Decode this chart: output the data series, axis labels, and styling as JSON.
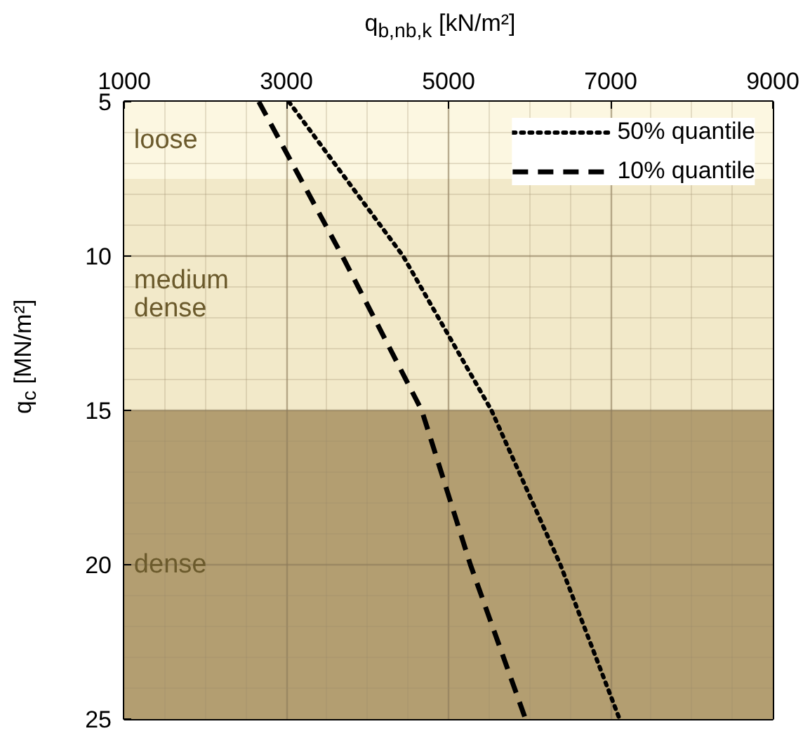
{
  "chart_data": {
    "type": "line",
    "xlabel": "q$_{b,nb,k}$ [kN/m²]",
    "ylabel": "q$_{c}$ [MN/m²]",
    "x": [
      5,
      10,
      15,
      20,
      25
    ],
    "orientation": "horizontal",
    "series": [
      {
        "name": "50% quantile",
        "color": "#000000",
        "line_style": "dotted",
        "values": [
          3030,
          4440,
          5530,
          6380,
          7110
        ]
      },
      {
        "name": "10% quantile",
        "color": "#000000",
        "line_style": "dashed",
        "values": [
          2660,
          3690,
          4670,
          5270,
          5950
        ]
      }
    ],
    "xlim": [
      1000,
      9000
    ],
    "xticks": [
      1000,
      {
        "value": 1500,
        "label": null
      },
      {
        "value": 2000,
        "label": null
      },
      {
        "value": 2500,
        "label": null
      },
      3000,
      {
        "value": 3500,
        "label": null
      },
      {
        "value": 4000,
        "label": null
      },
      {
        "value": 4500,
        "label": null
      },
      5000,
      {
        "value": 5500,
        "label": null
      },
      {
        "value": 6000,
        "label": null
      },
      {
        "value": 6500,
        "label": null
      },
      7000,
      {
        "value": 7500,
        "label": null
      },
      {
        "value": 8000,
        "label": null
      },
      {
        "value": 8500,
        "label": null
      },
      9000
    ],
    "ylim": [
      25,
      5
    ],
    "yticks": [
      5,
      {
        "value": 6,
        "label": null
      },
      {
        "value": 7,
        "label": null
      },
      {
        "value": 8,
        "label": null
      },
      {
        "value": 9,
        "label": null
      },
      10,
      {
        "value": 11,
        "label": null
      },
      {
        "value": 12,
        "label": null
      },
      {
        "value": 13,
        "label": null
      },
      {
        "value": 14,
        "label": null
      },
      15,
      {
        "value": 16,
        "label": null
      },
      {
        "value": 17,
        "label": null
      },
      {
        "value": 18,
        "label": null
      },
      {
        "value": 19,
        "label": null
      },
      20,
      {
        "value": 21,
        "label": null
      },
      {
        "value": 22,
        "label": null
      },
      {
        "value": 23,
        "label": null
      },
      {
        "value": 24,
        "label": null
      },
      25
    ],
    "bands": [
      {
        "axis": "y",
        "from": 5,
        "to": 7.5,
        "label": "loose",
        "color": "#fcf7e1"
      },
      {
        "axis": "y",
        "from": 7.5,
        "to": 15,
        "label": "medium\ndense",
        "color": "#f2e9c9"
      },
      {
        "axis": "y",
        "from": 15,
        "to": 25,
        "label": "dense",
        "color": "#b39e71"
      }
    ],
    "grid": true,
    "legend": "top right"
  }
}
